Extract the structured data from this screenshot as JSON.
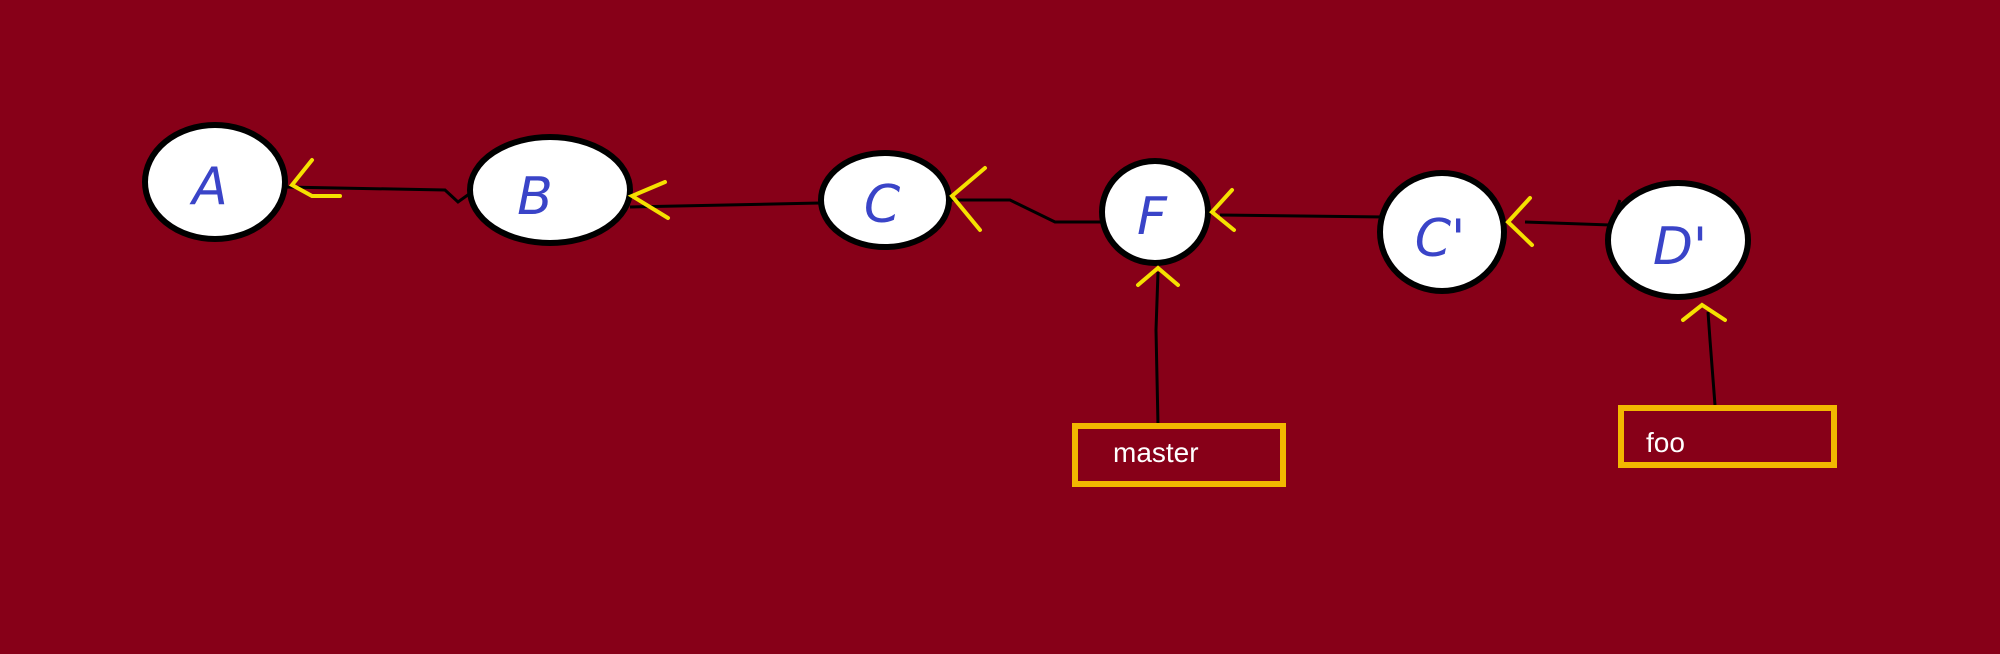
{
  "colors": {
    "background": "#870018",
    "node_fill": "#ffffff",
    "node_stroke": "#000000",
    "letter": "#3a44c8",
    "arrow": "#f5e100",
    "label_border": "#f2b800",
    "label_text": "#ffffff"
  },
  "commits": [
    {
      "label": "A"
    },
    {
      "label": "B"
    },
    {
      "label": "C"
    },
    {
      "label": "F"
    },
    {
      "label": "C'"
    },
    {
      "label": "D'"
    }
  ],
  "branches": [
    {
      "label": "master",
      "points_to": "F"
    },
    {
      "label": "foo",
      "points_to": "D'"
    }
  ]
}
